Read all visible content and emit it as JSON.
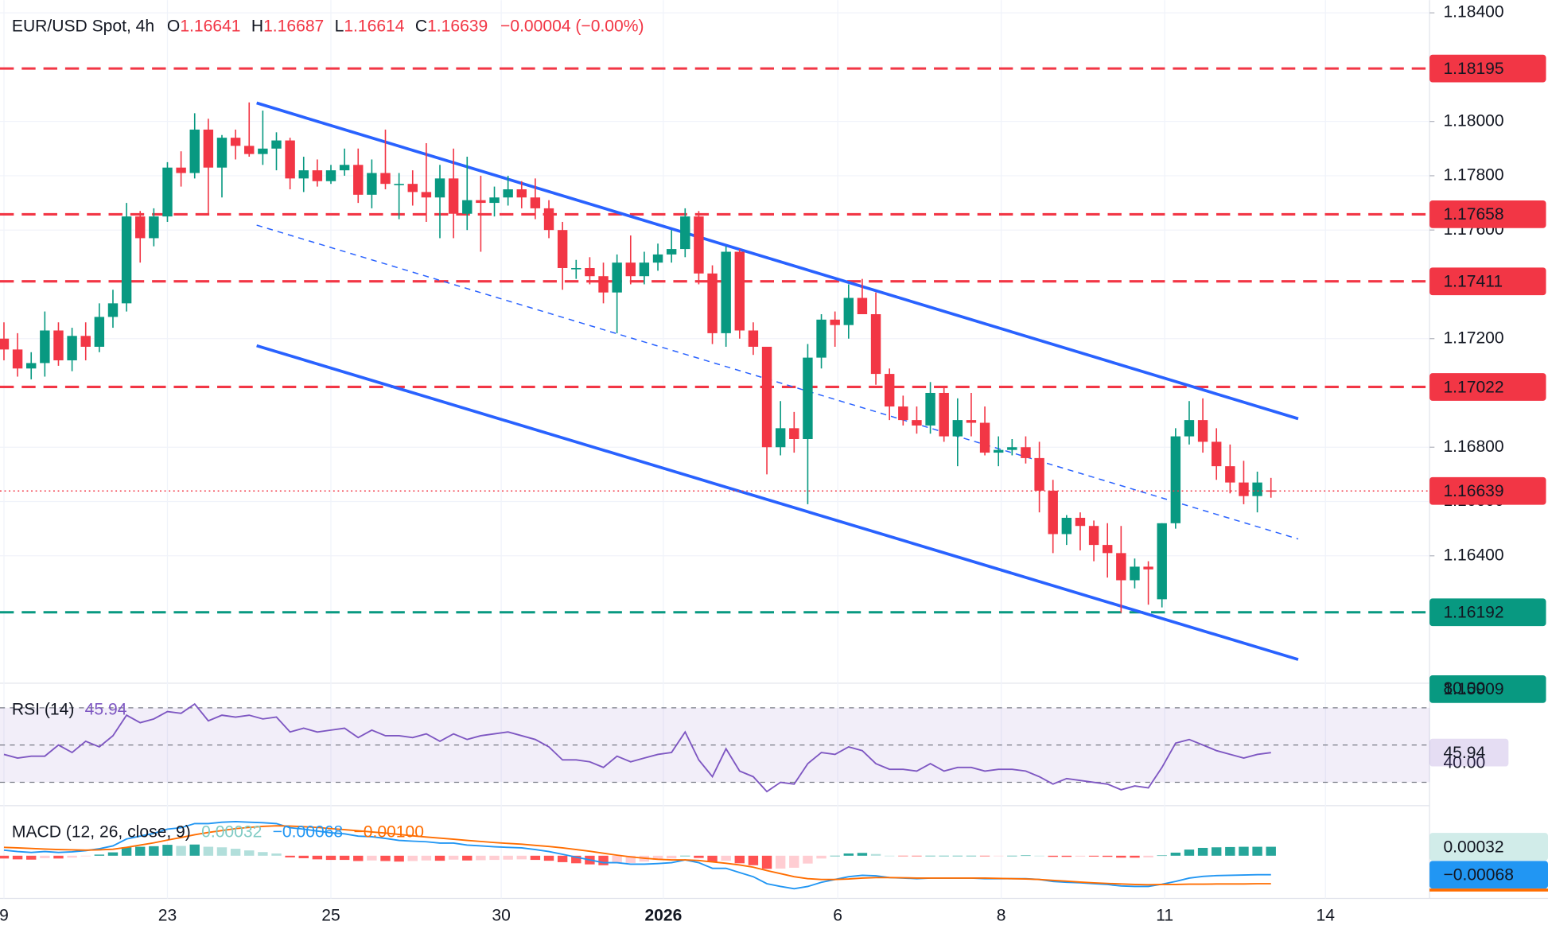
{
  "chart_data": {
    "type": "candlestick",
    "title": "EUR/USD Spot, 4h",
    "ohlc_labels": [
      "O",
      "H",
      "L",
      "C"
    ],
    "change_label": "−0.00004 (−0.00%)",
    "up_color": "#089981",
    "down_color": "#f23645",
    "grid": true,
    "xlim": [
      -0.29,
      104.64
    ],
    "xticks": [
      {
        "value": 0,
        "label": "9"
      },
      {
        "value": 12,
        "label": "23"
      },
      {
        "value": 24,
        "label": "25"
      },
      {
        "value": 36.5,
        "label": "30"
      },
      {
        "value": 48.4,
        "label": "2026"
      },
      {
        "value": 61.2,
        "label": "6"
      },
      {
        "value": 73.2,
        "label": "8"
      },
      {
        "value": 85.2,
        "label": "11"
      },
      {
        "value": 97,
        "label": "14"
      }
    ],
    "ylim": [
      1.15938,
      1.18447
    ],
    "yticks": [
      {
        "value": 1.184,
        "label": "1.18400"
      },
      {
        "value": 1.18,
        "label": "1.18000"
      },
      {
        "value": 1.178,
        "label": "1.17800"
      },
      {
        "value": 1.176,
        "label": "1.17600"
      },
      {
        "value": 1.172,
        "label": "1.17200"
      },
      {
        "value": 1.168,
        "label": "1.16800"
      },
      {
        "value": 1.166,
        "label": "1.16600"
      },
      {
        "value": 1.164,
        "label": "1.16400"
      }
    ],
    "levels": [
      {
        "value": 1.18195,
        "color": "#f23645",
        "line": true
      },
      {
        "value": 1.17658,
        "color": "#f23645",
        "line": true
      },
      {
        "value": 1.17411,
        "color": "#f23645",
        "line": true
      },
      {
        "value": 1.17022,
        "color": "#f23645",
        "line": true
      },
      {
        "value": 1.16192,
        "color": "#089981",
        "line": true
      },
      {
        "value": 1.15909,
        "color": "#089981",
        "line": false
      }
    ],
    "trendlines": [
      {
        "x": [
          18.55,
          95.0
        ],
        "y": [
          1.18068,
          1.16905
        ],
        "color": "#2962ff",
        "style": "solid"
      },
      {
        "x": [
          18.55,
          95.0
        ],
        "y": [
          1.17174,
          1.16018
        ],
        "color": "#2962ff",
        "style": "solid"
      },
      {
        "x": [
          18.55,
          95.0
        ],
        "y": [
          1.17618,
          1.16462
        ],
        "color": "#2962ff",
        "style": "dashed"
      }
    ],
    "candles": [
      [
        1.172,
        1.1726,
        1.1712,
        1.1716
      ],
      [
        1.1716,
        1.1722,
        1.1706,
        1.1709
      ],
      [
        1.1709,
        1.1715,
        1.1705,
        1.1711
      ],
      [
        1.1711,
        1.173,
        1.1706,
        1.1723
      ],
      [
        1.1723,
        1.1726,
        1.171,
        1.1712
      ],
      [
        1.1712,
        1.1724,
        1.1708,
        1.1721
      ],
      [
        1.1721,
        1.1726,
        1.1712,
        1.1717
      ],
      [
        1.1717,
        1.1733,
        1.1715,
        1.1728
      ],
      [
        1.1728,
        1.1738,
        1.1724,
        1.1733
      ],
      [
        1.1733,
        1.177,
        1.173,
        1.1765
      ],
      [
        1.1765,
        1.1767,
        1.1748,
        1.1757
      ],
      [
        1.1757,
        1.1768,
        1.1754,
        1.1765
      ],
      [
        1.1765,
        1.1785,
        1.1763,
        1.1783
      ],
      [
        1.1783,
        1.1789,
        1.1776,
        1.1781
      ],
      [
        1.1781,
        1.1803,
        1.1779,
        1.1797
      ],
      [
        1.1797,
        1.1801,
        1.1766,
        1.1783
      ],
      [
        1.1783,
        1.1795,
        1.1772,
        1.1794
      ],
      [
        1.1794,
        1.1797,
        1.1786,
        1.1791
      ],
      [
        1.1791,
        1.1807,
        1.1787,
        1.1788
      ],
      [
        1.1788,
        1.1804,
        1.1784,
        1.179
      ],
      [
        1.179,
        1.1796,
        1.1782,
        1.1793
      ],
      [
        1.1793,
        1.1794,
        1.1775,
        1.1779
      ],
      [
        1.1779,
        1.1787,
        1.1774,
        1.1782
      ],
      [
        1.1782,
        1.1786,
        1.1776,
        1.1778
      ],
      [
        1.1778,
        1.1784,
        1.1777,
        1.1782
      ],
      [
        1.1782,
        1.179,
        1.178,
        1.1784
      ],
      [
        1.1784,
        1.179,
        1.177,
        1.1773
      ],
      [
        1.1773,
        1.1786,
        1.1768,
        1.1781
      ],
      [
        1.1781,
        1.1797,
        1.1775,
        1.1777
      ],
      [
        1.1777,
        1.1781,
        1.1764,
        1.1777
      ],
      [
        1.1777,
        1.1782,
        1.1769,
        1.1774
      ],
      [
        1.1774,
        1.1792,
        1.1763,
        1.1772
      ],
      [
        1.1772,
        1.1784,
        1.1757,
        1.1779
      ],
      [
        1.1779,
        1.179,
        1.1757,
        1.1766
      ],
      [
        1.1766,
        1.1787,
        1.176,
        1.1771
      ],
      [
        1.1771,
        1.178,
        1.1752,
        1.177
      ],
      [
        1.177,
        1.1776,
        1.1765,
        1.1772
      ],
      [
        1.1772,
        1.178,
        1.1769,
        1.1775
      ],
      [
        1.1775,
        1.1778,
        1.1768,
        1.1772
      ],
      [
        1.1772,
        1.1779,
        1.1764,
        1.1768
      ],
      [
        1.1768,
        1.1771,
        1.1757,
        1.176
      ],
      [
        1.176,
        1.1763,
        1.1738,
        1.1746
      ],
      [
        1.1746,
        1.1749,
        1.1742,
        1.1746
      ],
      [
        1.1746,
        1.175,
        1.174,
        1.1743
      ],
      [
        1.1743,
        1.1748,
        1.1733,
        1.1737
      ],
      [
        1.1737,
        1.1751,
        1.1722,
        1.1748
      ],
      [
        1.1748,
        1.1758,
        1.174,
        1.1743
      ],
      [
        1.1743,
        1.1752,
        1.174,
        1.1748
      ],
      [
        1.1748,
        1.1755,
        1.1745,
        1.1751
      ],
      [
        1.1751,
        1.176,
        1.1748,
        1.1753
      ],
      [
        1.1753,
        1.1768,
        1.175,
        1.1765
      ],
      [
        1.1765,
        1.1767,
        1.174,
        1.1744
      ],
      [
        1.1744,
        1.1747,
        1.1718,
        1.1722
      ],
      [
        1.1722,
        1.1754,
        1.1717,
        1.1752
      ],
      [
        1.1752,
        1.1753,
        1.172,
        1.1723
      ],
      [
        1.1723,
        1.1726,
        1.1714,
        1.1717
      ],
      [
        1.1717,
        1.1717,
        1.167,
        1.168
      ],
      [
        1.168,
        1.1697,
        1.1677,
        1.1687
      ],
      [
        1.1687,
        1.1693,
        1.1678,
        1.1683
      ],
      [
        1.1683,
        1.1718,
        1.1659,
        1.1713
      ],
      [
        1.1713,
        1.1729,
        1.1709,
        1.1727
      ],
      [
        1.1727,
        1.173,
        1.1717,
        1.1725
      ],
      [
        1.1725,
        1.174,
        1.172,
        1.1735
      ],
      [
        1.1735,
        1.1742,
        1.1729,
        1.1729
      ],
      [
        1.1729,
        1.1737,
        1.1703,
        1.1707
      ],
      [
        1.1707,
        1.1709,
        1.169,
        1.1695
      ],
      [
        1.1695,
        1.1699,
        1.1688,
        1.169
      ],
      [
        1.169,
        1.1695,
        1.1685,
        1.1688
      ],
      [
        1.1688,
        1.1704,
        1.1685,
        1.17
      ],
      [
        1.17,
        1.1702,
        1.1682,
        1.1684
      ],
      [
        1.1684,
        1.1698,
        1.1673,
        1.169
      ],
      [
        1.169,
        1.17,
        1.1684,
        1.1689
      ],
      [
        1.1689,
        1.1695,
        1.1677,
        1.1678
      ],
      [
        1.1678,
        1.1684,
        1.1673,
        1.1679
      ],
      [
        1.1679,
        1.1683,
        1.1677,
        1.168
      ],
      [
        1.168,
        1.1684,
        1.1674,
        1.1676
      ],
      [
        1.1676,
        1.1682,
        1.1656,
        1.1664
      ],
      [
        1.1664,
        1.1668,
        1.1641,
        1.1648
      ],
      [
        1.1648,
        1.1655,
        1.1644,
        1.1654
      ],
      [
        1.1654,
        1.1656,
        1.1642,
        1.1651
      ],
      [
        1.1651,
        1.1653,
        1.1638,
        1.1644
      ],
      [
        1.1644,
        1.1652,
        1.1632,
        1.1641
      ],
      [
        1.1641,
        1.1651,
        1.1619,
        1.1631
      ],
      [
        1.1631,
        1.1639,
        1.1628,
        1.1636
      ],
      [
        1.1636,
        1.1638,
        1.1622,
        1.1635
      ],
      [
        1.1624,
        1.1652,
        1.1621,
        1.1652
      ],
      [
        1.1652,
        1.1687,
        1.165,
        1.1684
      ],
      [
        1.1684,
        1.1697,
        1.1681,
        1.169
      ],
      [
        1.169,
        1.1698,
        1.1678,
        1.1682
      ],
      [
        1.1682,
        1.1687,
        1.1668,
        1.1673
      ],
      [
        1.1673,
        1.1681,
        1.1663,
        1.1667
      ],
      [
        1.1667,
        1.1675,
        1.1659,
        1.1662
      ],
      [
        1.1662,
        1.1671,
        1.1656,
        1.1667
      ],
      [
        1.16641,
        1.16687,
        1.16614,
        1.16639
      ]
    ],
    "rsi": {
      "title": "RSI (14)",
      "color": "#7e57c2",
      "ylim": [
        18,
        81.6
      ],
      "yticks": [
        {
          "value": 80,
          "label": "80.00"
        },
        {
          "value": 40,
          "label": "40.00"
        }
      ],
      "levels": [
        70,
        50,
        30
      ],
      "values": [
        45,
        43,
        44,
        44,
        50,
        46,
        52,
        49,
        55,
        66,
        62,
        64,
        68,
        67,
        72,
        63,
        66,
        65,
        66,
        64,
        65,
        57,
        59,
        57,
        58,
        59,
        54,
        58,
        55,
        55,
        54,
        56,
        52,
        56,
        53,
        55,
        56,
        57,
        55,
        53,
        49,
        42,
        42,
        41,
        38,
        44,
        41,
        43,
        45,
        46,
        57,
        42,
        33,
        48,
        36,
        33,
        25,
        30,
        29,
        40,
        46,
        45,
        49,
        47,
        40,
        37,
        37,
        36,
        40,
        36,
        38,
        38,
        36,
        37,
        37,
        36,
        33,
        29,
        32,
        31,
        30,
        29,
        26,
        28,
        27,
        38,
        51,
        53,
        50,
        47,
        45,
        43,
        45,
        45.94
      ]
    },
    "macd": {
      "title": "MACD (12, 26, close, 9)",
      "ylim": [
        -0.00135,
        0.00165
      ],
      "histogram": {
        "colors": [
          "#26a69a",
          "#b2dfdb",
          "#ff5252",
          "#ffcdd2"
        ],
        "values": [
          -0.0001,
          -0.00013,
          -0.00014,
          -9e-05,
          -0.0001,
          -7e-05,
          -2e-05,
          4e-05,
          0.00012,
          0.0003,
          0.00032,
          0.00034,
          0.00039,
          0.00035,
          0.0004,
          0.00032,
          0.0003,
          0.00025,
          0.00019,
          0.00013,
          8e-05,
          -6e-05,
          -9e-05,
          -0.00013,
          -0.00015,
          -0.00015,
          -0.00019,
          -0.00017,
          -0.00019,
          -0.00021,
          -0.00019,
          -0.00017,
          -0.00018,
          -0.00014,
          -0.00017,
          -0.00016,
          -0.00015,
          -0.00014,
          -0.00013,
          -0.00015,
          -0.00018,
          -0.00023,
          -0.00027,
          -0.00031,
          -0.00034,
          -0.00027,
          -0.00026,
          -0.00021,
          -0.00015,
          -0.0001,
          0,
          -8e-05,
          -0.00023,
          -0.00018,
          -0.00027,
          -0.00034,
          -0.00047,
          -0.00046,
          -0.00043,
          -0.00028,
          -0.0001,
          0,
          8e-05,
          0.0001,
          6e-05,
          0,
          -1e-05,
          -2e-05,
          0,
          0,
          0,
          0,
          -2e-05,
          -1e-05,
          0,
          1e-05,
          0,
          -4e-05,
          -4e-05,
          -3e-05,
          -3e-05,
          -4e-05,
          -7e-05,
          -7e-05,
          -6e-05,
          1e-05,
          0.00011,
          0.00022,
          0.00028,
          0.0003,
          0.00031,
          0.00032,
          0.00032,
          0.00032
        ]
      },
      "macd_line": {
        "color": "#2196f3",
        "last_label": "−0.00068",
        "values": [
          0.0002,
          0.00015,
          0.00012,
          0.00015,
          0.00012,
          0.00014,
          0.00018,
          0.00025,
          0.00035,
          0.0006,
          0.0007,
          0.0008,
          0.00095,
          0.001,
          0.00115,
          0.00115,
          0.0012,
          0.00122,
          0.0012,
          0.00118,
          0.00115,
          0.001,
          0.00095,
          0.00088,
          0.00082,
          0.00078,
          0.0007,
          0.00068,
          0.00062,
          0.00055,
          0.00052,
          0.0005,
          0.00045,
          0.00045,
          0.00038,
          0.00035,
          0.00032,
          0.0003,
          0.00028,
          0.00022,
          0.00015,
          5e-05,
          -5e-05,
          -0.00015,
          -0.00025,
          -0.00025,
          -0.0003,
          -0.0003,
          -0.00028,
          -0.00025,
          -0.00015,
          -0.00025,
          -0.00045,
          -0.00045,
          -0.0006,
          -0.00075,
          -0.001,
          -0.0011,
          -0.00118,
          -0.0011,
          -0.00095,
          -0.00085,
          -0.00075,
          -0.0007,
          -0.00072,
          -0.00078,
          -0.0008,
          -0.00082,
          -0.0008,
          -0.0008,
          -0.0008,
          -0.0008,
          -0.00082,
          -0.00082,
          -0.00082,
          -0.00082,
          -0.00085,
          -0.00092,
          -0.00095,
          -0.00097,
          -0.001,
          -0.00103,
          -0.00108,
          -0.0011,
          -0.0011,
          -0.00102,
          -0.00092,
          -0.0008,
          -0.00074,
          -0.00071,
          -0.0007,
          -0.00069,
          -0.00068,
          -0.00068
        ]
      },
      "signal_line": {
        "color": "#ff6d00",
        "last_label": "−0.00100",
        "values": [
          0.0003,
          0.00028,
          0.00026,
          0.00024,
          0.00022,
          0.00021,
          0.0002,
          0.00021,
          0.00023,
          0.0003,
          0.00038,
          0.00046,
          0.00056,
          0.00065,
          0.00075,
          0.00083,
          0.0009,
          0.00097,
          0.00101,
          0.00105,
          0.00107,
          0.00106,
          0.00104,
          0.00101,
          0.00097,
          0.00093,
          0.00089,
          0.00085,
          0.00081,
          0.00076,
          0.00071,
          0.00067,
          0.00063,
          0.00059,
          0.00055,
          0.00051,
          0.00047,
          0.00044,
          0.00041,
          0.00037,
          0.00033,
          0.00028,
          0.00022,
          0.00016,
          9e-05,
          2e-05,
          -4e-05,
          -9e-05,
          -0.00013,
          -0.00015,
          -0.00015,
          -0.00017,
          -0.00022,
          -0.00027,
          -0.00033,
          -0.00041,
          -0.00053,
          -0.00064,
          -0.00075,
          -0.00082,
          -0.00085,
          -0.00085,
          -0.00083,
          -0.0008,
          -0.00078,
          -0.00078,
          -0.00079,
          -0.0008,
          -0.0008,
          -0.0008,
          -0.0008,
          -0.0008,
          -0.0008,
          -0.00081,
          -0.00082,
          -0.00083,
          -0.00085,
          -0.00088,
          -0.00091,
          -0.00094,
          -0.00097,
          -0.00099,
          -0.00101,
          -0.00103,
          -0.00104,
          -0.00103,
          -0.00103,
          -0.00102,
          -0.00102,
          -0.00101,
          -0.00101,
          -0.00101,
          -0.001,
          -0.001
        ]
      }
    }
  }
}
